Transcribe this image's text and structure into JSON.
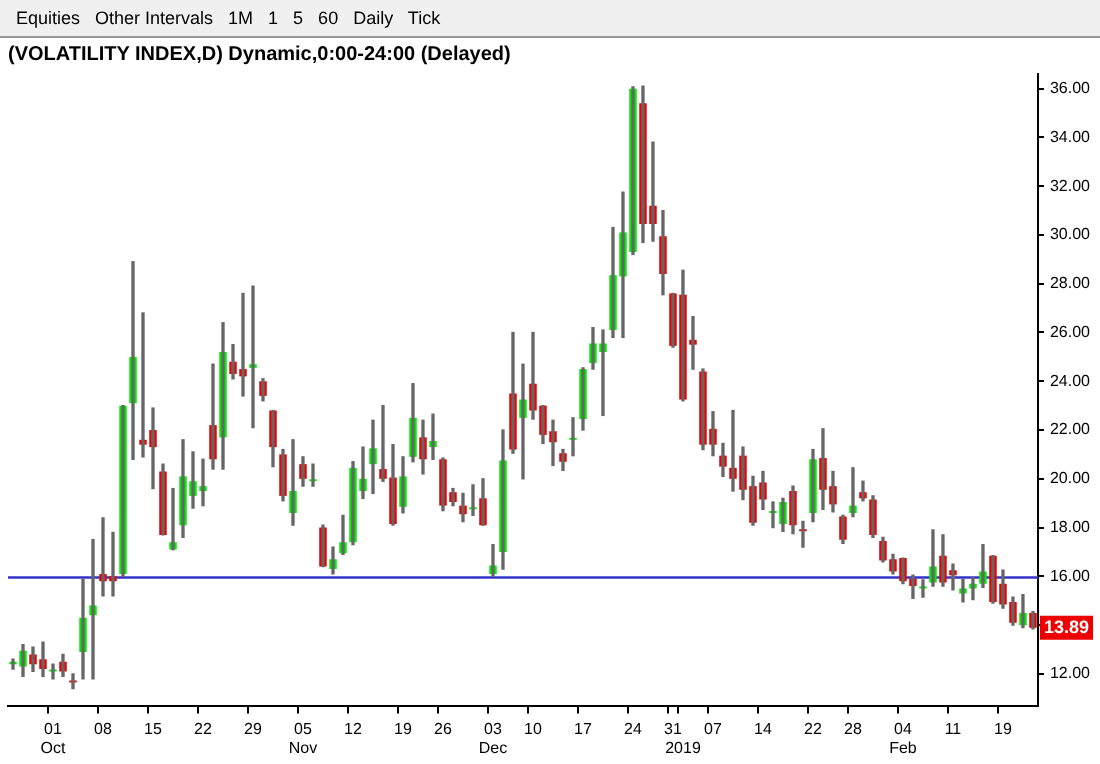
{
  "chart_data": {
    "type": "candlestick",
    "title": "(VOLATILITY INDEX,D) Dynamic,0:00-24:00 (Delayed)",
    "categories": [
      null,
      null,
      null,
      null,
      "01\nOct",
      null,
      null,
      null,
      null,
      "08",
      null,
      null,
      null,
      null,
      "15",
      null,
      null,
      null,
      null,
      "22",
      null,
      null,
      null,
      null,
      "29",
      null,
      null,
      null,
      null,
      "05\nNov",
      null,
      null,
      null,
      null,
      "12",
      null,
      null,
      null,
      null,
      "19",
      null,
      null,
      null,
      "26",
      null,
      null,
      null,
      null,
      "03\nDec",
      null,
      null,
      null,
      "10",
      null,
      null,
      null,
      null,
      "17",
      null,
      null,
      null,
      null,
      "24",
      null,
      null,
      null,
      "31",
      "\n2019",
      null,
      null,
      "07",
      null,
      null,
      null,
      null,
      "14",
      null,
      null,
      null,
      null,
      "22",
      null,
      null,
      null,
      "28",
      null,
      null,
      null,
      null,
      "04\nFeb",
      null,
      null,
      null,
      null,
      "11",
      null,
      null,
      null,
      null,
      "19",
      null,
      null,
      null
    ],
    "ohlc": [
      [
        12.4,
        12.6,
        12.2,
        12.5
      ],
      [
        12.3,
        13.2,
        11.9,
        12.95
      ],
      [
        12.8,
        13.1,
        12.1,
        12.4
      ],
      [
        12.6,
        13.3,
        11.9,
        12.2
      ],
      [
        12.1,
        12.4,
        11.8,
        12.1
      ],
      [
        12.5,
        12.8,
        11.9,
        12.1
      ],
      [
        11.7,
        12.0,
        11.4,
        11.65
      ],
      [
        12.9,
        15.9,
        11.8,
        14.3
      ],
      [
        14.4,
        17.5,
        11.8,
        14.8
      ],
      [
        16.1,
        18.4,
        15.2,
        15.8
      ],
      [
        16.0,
        17.8,
        15.2,
        15.8
      ],
      [
        16.1,
        23.0,
        16.0,
        23.0
      ],
      [
        23.1,
        28.9,
        20.8,
        25.0
      ],
      [
        21.6,
        26.8,
        20.9,
        21.4
      ],
      [
        22.0,
        22.9,
        19.6,
        21.3
      ],
      [
        20.3,
        20.6,
        17.7,
        17.7
      ],
      [
        17.1,
        19.6,
        17.1,
        17.4
      ],
      [
        18.1,
        21.6,
        17.6,
        20.1
      ],
      [
        19.3,
        21.1,
        18.8,
        19.9
      ],
      [
        19.5,
        20.8,
        18.9,
        19.7
      ],
      [
        22.2,
        24.7,
        20.4,
        20.8
      ],
      [
        21.7,
        26.4,
        20.4,
        25.2
      ],
      [
        24.8,
        25.5,
        24.1,
        24.3
      ],
      [
        24.5,
        27.6,
        23.4,
        24.2
      ],
      [
        24.55,
        27.9,
        22.1,
        24.7
      ],
      [
        24.0,
        24.1,
        23.2,
        23.4
      ],
      [
        22.8,
        22.8,
        20.5,
        21.3
      ],
      [
        21.0,
        21.2,
        19.1,
        19.3
      ],
      [
        18.6,
        21.6,
        18.1,
        19.5
      ],
      [
        20.6,
        20.9,
        19.7,
        20.0
      ],
      [
        19.9,
        20.6,
        19.7,
        19.9
      ],
      [
        18.0,
        18.1,
        16.4,
        16.4
      ],
      [
        16.3,
        17.2,
        16.1,
        16.7
      ],
      [
        16.95,
        18.5,
        16.9,
        17.4
      ],
      [
        17.4,
        20.7,
        17.3,
        20.45
      ],
      [
        19.5,
        21.3,
        19.2,
        20.0
      ],
      [
        20.6,
        22.4,
        19.4,
        21.25
      ],
      [
        20.4,
        23.0,
        19.9,
        20.0
      ],
      [
        20.05,
        21.4,
        18.1,
        18.15
      ],
      [
        18.85,
        20.9,
        18.6,
        20.1
      ],
      [
        20.9,
        23.9,
        20.7,
        22.5
      ],
      [
        21.7,
        22.4,
        20.2,
        20.8
      ],
      [
        21.3,
        22.65,
        20.8,
        21.55
      ],
      [
        20.8,
        20.85,
        18.7,
        18.9
      ],
      [
        19.45,
        19.6,
        18.9,
        19.05
      ],
      [
        18.9,
        19.4,
        18.25,
        18.55
      ],
      [
        18.75,
        19.75,
        18.5,
        18.8
      ],
      [
        19.2,
        20.0,
        18.1,
        18.1
      ],
      [
        16.1,
        17.3,
        16.0,
        16.45
      ],
      [
        17.0,
        22.0,
        16.3,
        20.75
      ],
      [
        23.5,
        26.0,
        21.05,
        21.2
      ],
      [
        22.5,
        24.7,
        20.0,
        23.25
      ],
      [
        23.9,
        26.0,
        22.45,
        22.8
      ],
      [
        23.0,
        23.0,
        21.45,
        21.8
      ],
      [
        21.95,
        22.4,
        20.55,
        21.5
      ],
      [
        21.05,
        21.2,
        20.35,
        20.7
      ],
      [
        21.6,
        22.5,
        20.95,
        21.63
      ],
      [
        22.45,
        24.55,
        22.0,
        24.5
      ],
      [
        24.75,
        26.2,
        24.5,
        25.55
      ],
      [
        25.2,
        26.1,
        22.6,
        25.55
      ],
      [
        26.1,
        30.3,
        25.8,
        28.35
      ],
      [
        28.3,
        31.75,
        25.8,
        30.1
      ],
      [
        29.3,
        36.07,
        29.2,
        36.0
      ],
      [
        35.4,
        36.1,
        29.7,
        30.45
      ],
      [
        31.2,
        33.8,
        29.75,
        30.45
      ],
      [
        29.95,
        31.0,
        27.55,
        28.4
      ],
      [
        27.6,
        27.6,
        25.4,
        25.45
      ],
      [
        27.55,
        28.55,
        23.2,
        23.25
      ],
      [
        25.7,
        26.65,
        24.5,
        25.5
      ],
      [
        24.4,
        24.5,
        21.2,
        21.4
      ],
      [
        22.05,
        22.75,
        20.95,
        21.4
      ],
      [
        20.95,
        21.45,
        20.1,
        20.5
      ],
      [
        20.45,
        22.8,
        19.5,
        20.0
      ],
      [
        20.95,
        21.3,
        19.15,
        19.55
      ],
      [
        19.7,
        20.1,
        18.1,
        18.2
      ],
      [
        19.85,
        20.3,
        18.75,
        19.15
      ],
      [
        18.6,
        19.05,
        18.0,
        18.6
      ],
      [
        18.15,
        19.2,
        17.85,
        19.05
      ],
      [
        19.5,
        19.7,
        17.75,
        18.1
      ],
      [
        17.9,
        18.25,
        17.2,
        17.85
      ],
      [
        18.6,
        21.2,
        18.25,
        20.8
      ],
      [
        20.85,
        22.05,
        18.75,
        19.55
      ],
      [
        19.7,
        20.3,
        18.65,
        18.95
      ],
      [
        18.45,
        18.5,
        17.35,
        17.5
      ],
      [
        18.6,
        20.45,
        18.45,
        18.9
      ],
      [
        19.45,
        19.9,
        19.1,
        19.2
      ],
      [
        19.15,
        19.3,
        17.6,
        17.7
      ],
      [
        17.45,
        17.6,
        16.6,
        16.65
      ],
      [
        16.7,
        16.9,
        16.1,
        16.2
      ],
      [
        16.75,
        16.75,
        15.7,
        15.8
      ],
      [
        15.9,
        16.05,
        15.1,
        15.6
      ],
      [
        15.5,
        15.85,
        15.15,
        15.55
      ],
      [
        15.75,
        17.9,
        15.6,
        16.4
      ],
      [
        16.85,
        17.7,
        15.6,
        15.75
      ],
      [
        16.25,
        16.5,
        15.45,
        16.05
      ],
      [
        15.3,
        15.9,
        14.95,
        15.5
      ],
      [
        15.5,
        15.95,
        15.05,
        15.7
      ],
      [
        15.7,
        17.3,
        15.55,
        16.2
      ],
      [
        16.85,
        16.85,
        14.9,
        14.95
      ],
      [
        15.7,
        16.25,
        14.7,
        14.85
      ],
      [
        14.95,
        15.15,
        14.0,
        14.1
      ],
      [
        14.0,
        15.25,
        13.9,
        14.5
      ],
      [
        14.5,
        14.55,
        13.85,
        13.89
      ]
    ],
    "colors": [
      "#00ee00",
      "#00ee00",
      "#ee0000",
      "#ee0000",
      "#00ee00",
      "#ee0000",
      "#ee0000",
      "#00ee00",
      "#00ee00",
      "#ee0000",
      "#ee0000",
      "#00ee00",
      "#00ee00",
      "#ee0000",
      "#ee0000",
      "#ee0000",
      "#00ee00",
      "#00ee00",
      "#00ee00",
      "#00ee00",
      "#ee0000",
      "#00ee00",
      "#ee0000",
      "#ee0000",
      "#00ee00",
      "#ee0000",
      "#ee0000",
      "#ee0000",
      "#00ee00",
      "#ee0000",
      "#00ee00",
      "#ee0000",
      "#00ee00",
      "#00ee00",
      "#00ee00",
      "#00ee00",
      "#00ee00",
      "#ee0000",
      "#ee0000",
      "#00ee00",
      "#00ee00",
      "#ee0000",
      "#00ee00",
      "#ee0000",
      "#ee0000",
      "#ee0000",
      "#00ee00",
      "#ee0000",
      "#00ee00",
      "#00ee00",
      "#ee0000",
      "#00ee00",
      "#ee0000",
      "#ee0000",
      "#ee0000",
      "#ee0000",
      "#00ee00",
      "#00ee00",
      "#00ee00",
      "#00ee00",
      "#00ee00",
      "#00ee00",
      "#00ee00",
      "#ee0000",
      "#ee0000",
      "#ee0000",
      "#ee0000",
      "#ee0000",
      "#ee0000",
      "#ee0000",
      "#ee0000",
      "#ee0000",
      "#ee0000",
      "#ee0000",
      "#ee0000",
      "#ee0000",
      "#00ee00",
      "#00ee00",
      "#ee0000",
      "#ee0000",
      "#00ee00",
      "#ee0000",
      "#ee0000",
      "#ee0000",
      "#00ee00",
      "#ee0000",
      "#ee0000",
      "#ee0000",
      "#ee0000",
      "#ee0000",
      "#ee0000",
      "#00ee00",
      "#00ee00",
      "#ee0000",
      "#ee0000",
      "#00ee00",
      "#00ee00",
      "#00ee00",
      "#ee0000",
      "#ee0000",
      "#ee0000",
      "#00ee00",
      "#ee0000"
    ],
    "ylim": [
      10.7,
      36.6
    ],
    "yticks": [
      {
        "value": 12,
        "label": "12.00"
      },
      {
        "value": 14,
        "label": null
      },
      {
        "value": 16,
        "label": "16.00"
      },
      {
        "value": 18,
        "label": "18.00"
      },
      {
        "value": 20,
        "label": "20.00"
      },
      {
        "value": 22,
        "label": "22.00"
      },
      {
        "value": 24,
        "label": "24.00"
      },
      {
        "value": 26,
        "label": "26.00"
      },
      {
        "value": 28,
        "label": "28.00"
      },
      {
        "value": 30,
        "label": "30.00"
      },
      {
        "value": 32,
        "label": "32.00"
      },
      {
        "value": 34,
        "label": "34.00"
      },
      {
        "value": 36,
        "label": "36.00"
      }
    ],
    "ref_lines": [
      {
        "axis": "y",
        "value": 15.95,
        "color": "#3333cc"
      }
    ],
    "annotations": [
      "Equities   Other Intervals   1M   1   5   60   Daily   Tick",
      {
        "text": "13.89",
        "y": 13.89
      }
    ],
    "grid": false,
    "legend": false
  }
}
